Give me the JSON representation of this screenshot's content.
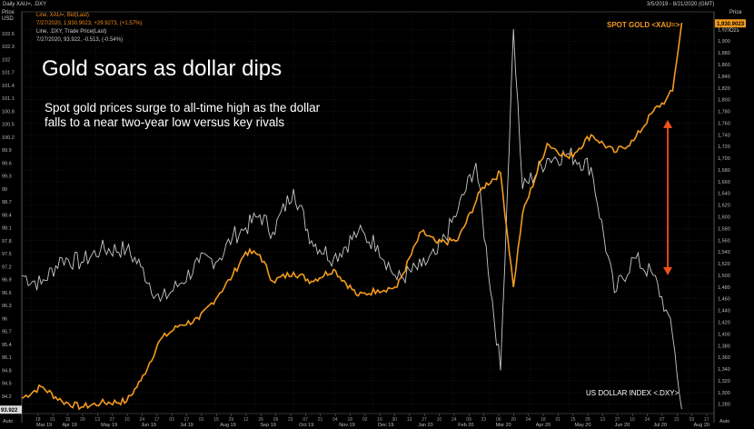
{
  "header": {
    "window_title": "Daily XAU=, .DXY",
    "date_range": "3/5/2019 - 8/21/2020 (GMT)",
    "left_axis_title": "Price",
    "left_axis_unit": "USD",
    "right_axis_title": "Price",
    "right_axis_unit": "Ozs",
    "legend_lines": [
      {
        "text": "Line, XAU=, Bid(Last)",
        "color": "#f28c1e"
      },
      {
        "text": "7/27/2020, 1,930.9023, +29.9273, (+1.57%)",
        "color": "#f28c1e"
      },
      {
        "text": "Line, .DXY, Trade Price(Last)",
        "color": "#cccccc"
      },
      {
        "text": "7/27/2020, 93.922, -0.513, (-0.54%)",
        "color": "#cccccc"
      }
    ],
    "legend_change_colors": [
      "#3fd3c8",
      "#e03b3b"
    ],
    "legend_changes": [
      "+29.9273, (+1.57%)",
      "-0.513, (-0.54%)"
    ]
  },
  "headline": "Gold soars as dollar dips",
  "subline": "Spot gold prices surge to all-time high as the dollar falls to a near two-year low versus key rivals",
  "chart_data": {
    "type": "line",
    "x_ticks": [
      "Mar 19",
      "Apr 19",
      "May 19",
      "Jun 19",
      "Jul 19",
      "Aug 19",
      "Sep 19",
      "Oct 19",
      "Nov 19",
      "Dec 19",
      "Jan 20",
      "Feb 20",
      "Mar 20",
      "Apr 20",
      "May 20",
      "Jun 20",
      "Jul 20",
      "Aug 20"
    ],
    "x_minor_ticks": [
      "18",
      "01",
      "15",
      "29",
      "13",
      "27",
      "10",
      "24",
      "17",
      "03",
      "17",
      "01",
      "15",
      "29",
      "12",
      "26",
      "09",
      "23",
      "07",
      "21",
      "04",
      "18",
      "02",
      "16",
      "30",
      "13",
      "27",
      "10",
      "24",
      "09",
      "23",
      "06",
      "20",
      "04",
      "18",
      "01",
      "15",
      "29",
      "13",
      "27",
      "10",
      "24",
      "07",
      "21",
      "03",
      "17"
    ],
    "left_axis": {
      "label": "USD",
      "range": [
        93.8,
        103.1
      ],
      "ticks": [
        "102.6",
        "102.3",
        "102",
        "101.7",
        "101.4",
        "101.1",
        "100.8",
        "100.5",
        "100.2",
        "99.9",
        "99.6",
        "99.3",
        "99",
        "98.7",
        "98.4",
        "98.1",
        "97.8",
        "97.5",
        "97.2",
        "96.9",
        "96.6",
        "96.3",
        "96",
        "95.7",
        "95.4",
        "95.1",
        "94.8",
        "94.5",
        "94.2"
      ],
      "current_value_label": "93.922",
      "footer_label": "Auto"
    },
    "right_axis": {
      "label": "Ozs",
      "range": [
        1264,
        1950
      ],
      "ticks": [
        "1,920",
        "1,900",
        "1,880",
        "1,860",
        "1,840",
        "1,820",
        "1,800",
        "1,780",
        "1,760",
        "1,740",
        "1,720",
        "1,700",
        "1,680",
        "1,660",
        "1,640",
        "1,620",
        "1,600",
        "1,580",
        "1,560",
        "1,540",
        "1,520",
        "1,500",
        "1,480",
        "1,460",
        "1,440",
        "1,420",
        "1,400",
        "1,380",
        "1,360",
        "1,340",
        "1,320",
        "1,300",
        "1,280"
      ],
      "current_value_label": "1,930.9023",
      "footer_label": "Auto"
    },
    "series": [
      {
        "name": "SPOT GOLD <XAU=>",
        "axis": "right",
        "color": "#f39b1f",
        "x": [
          "2019-03-05",
          "2019-03-20",
          "2019-04-05",
          "2019-04-20",
          "2019-05-05",
          "2019-05-25",
          "2019-06-05",
          "2019-06-20",
          "2019-07-05",
          "2019-07-20",
          "2019-08-05",
          "2019-08-15",
          "2019-08-25",
          "2019-09-05",
          "2019-09-15",
          "2019-10-01",
          "2019-10-15",
          "2019-11-01",
          "2019-11-20",
          "2019-12-05",
          "2019-12-20",
          "2020-01-08",
          "2020-01-20",
          "2020-02-05",
          "2020-02-24",
          "2020-03-09",
          "2020-03-19",
          "2020-03-26",
          "2020-04-14",
          "2020-05-01",
          "2020-05-18",
          "2020-06-05",
          "2020-06-20",
          "2020-07-05",
          "2020-07-15",
          "2020-07-20",
          "2020-07-27"
        ],
        "y": [
          1290,
          1310,
          1285,
          1275,
          1282,
          1285,
          1320,
          1390,
          1415,
          1425,
          1470,
          1500,
          1540,
          1535,
          1490,
          1505,
          1490,
          1510,
          1465,
          1475,
          1480,
          1575,
          1555,
          1560,
          1650,
          1675,
          1480,
          1605,
          1725,
          1700,
          1740,
          1710,
          1730,
          1780,
          1800,
          1815,
          1931
        ]
      },
      {
        "name": "US DOLLAR INDEX <.DXY>",
        "axis": "left",
        "color": "#c8c8c8",
        "x": [
          "2019-03-05",
          "2019-03-20",
          "2019-04-05",
          "2019-04-20",
          "2019-05-05",
          "2019-05-25",
          "2019-06-05",
          "2019-06-20",
          "2019-07-05",
          "2019-07-20",
          "2019-08-05",
          "2019-08-15",
          "2019-08-25",
          "2019-09-05",
          "2019-09-15",
          "2019-10-01",
          "2019-10-15",
          "2019-11-01",
          "2019-11-20",
          "2019-12-05",
          "2019-12-20",
          "2020-01-08",
          "2020-01-20",
          "2020-02-05",
          "2020-02-19",
          "2020-03-09",
          "2020-03-19",
          "2020-03-26",
          "2020-04-14",
          "2020-05-01",
          "2020-05-18",
          "2020-06-05",
          "2020-06-20",
          "2020-07-05",
          "2020-07-15",
          "2020-07-20",
          "2020-07-27"
        ],
        "y": [
          97.0,
          96.8,
          97.4,
          97.3,
          97.6,
          97.6,
          97.2,
          96.4,
          96.8,
          97.3,
          97.4,
          97.9,
          98.1,
          98.4,
          98.0,
          99.0,
          97.8,
          97.4,
          98.0,
          97.7,
          96.9,
          97.2,
          97.5,
          98.5,
          99.6,
          94.8,
          102.7,
          99.0,
          99.7,
          99.8,
          99.5,
          96.6,
          97.4,
          97.0,
          96.2,
          95.6,
          93.9
        ]
      }
    ],
    "annotations": [
      {
        "text": "SPOT GOLD <XAU=>",
        "color": "#f39b1f"
      },
      {
        "text": "US DOLLAR INDEX <.DXY>",
        "color": "#ffffff"
      }
    ],
    "arrow": {
      "color": "#f24f1d",
      "from": {
        "date": "2020-07-05",
        "left_value": 100.6
      },
      "to": {
        "date": "2020-07-05",
        "left_value": 97.0
      }
    },
    "grid": true,
    "legend": "top-left"
  }
}
